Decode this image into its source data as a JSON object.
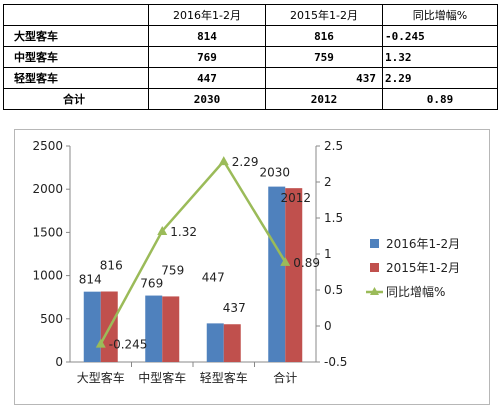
{
  "table": {
    "headers": [
      "",
      "2016年1-2月",
      "2015年1-2月",
      "同比增幅%"
    ],
    "rows": [
      {
        "label": "大型客车",
        "v2016": "814",
        "v2015": "816",
        "growth": "-0.245"
      },
      {
        "label": "中型客车",
        "v2016": "769",
        "v2015": "759",
        "growth": "1.32"
      },
      {
        "label": "轻型客车",
        "v2016": "447",
        "v2015": "437",
        "growth": "2.29"
      },
      {
        "label": "合计",
        "v2016": "2030",
        "v2015": "2012",
        "growth": "0.89"
      }
    ]
  },
  "chart_data": {
    "type": "bar",
    "categories": [
      "大型客车",
      "中型客车",
      "轻型客车",
      "合计"
    ],
    "series": [
      {
        "name": "2016年1-2月",
        "type": "bar",
        "axis": "left",
        "color": "#4f81bd",
        "values": [
          814,
          769,
          447,
          2030
        ],
        "labels": [
          "814",
          "769",
          "447",
          "2030"
        ]
      },
      {
        "name": "2015年1-2月",
        "type": "bar",
        "axis": "left",
        "color": "#c0504d",
        "values": [
          816,
          759,
          437,
          2012
        ],
        "labels": [
          "816",
          "759",
          "437",
          "2012"
        ]
      },
      {
        "name": "同比增幅%",
        "type": "line",
        "axis": "right",
        "color": "#9bbb59",
        "values": [
          -0.245,
          1.32,
          2.29,
          0.89
        ],
        "labels": [
          "-0.245",
          "1.32",
          "2.29",
          "0.89"
        ]
      }
    ],
    "y_left": {
      "min": 0,
      "max": 2500,
      "ticks": [
        "0",
        "500",
        "1000",
        "1500",
        "2000",
        "2500"
      ]
    },
    "y_right": {
      "min": -0.5,
      "max": 2.5,
      "ticks": [
        "-0.5",
        "0",
        "0.5",
        "1",
        "1.5",
        "2",
        "2.5"
      ]
    },
    "grid": false,
    "legend_position": "right"
  }
}
